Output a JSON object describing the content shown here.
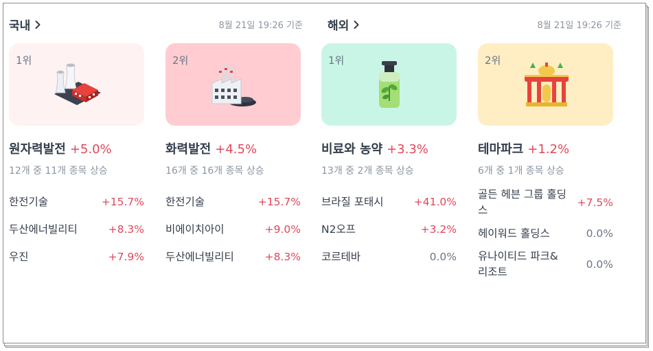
{
  "domestic": {
    "title": "국내",
    "timestamp": "8월 21일 19:26 기준",
    "cards": [
      {
        "rank": "1위",
        "icon": "nuclear-plant-icon",
        "bg": "#fff2f3",
        "name": "원자력발전",
        "change": "+5.0%",
        "summary": "12개 중 11개 종목 상승",
        "stocks": [
          {
            "name": "한전기술",
            "change": "+15.7%"
          },
          {
            "name": "두산에너빌리티",
            "change": "+8.3%"
          },
          {
            "name": "우진",
            "change": "+7.9%"
          }
        ]
      },
      {
        "rank": "2위",
        "icon": "thermal-plant-icon",
        "bg": "#ffccd1",
        "name": "화력발전",
        "change": "+4.5%",
        "summary": "16개 중 16개 종목 상승",
        "stocks": [
          {
            "name": "한전기술",
            "change": "+15.7%"
          },
          {
            "name": "비에이치아이",
            "change": "+9.0%"
          },
          {
            "name": "두산에너빌리티",
            "change": "+8.3%"
          }
        ]
      }
    ]
  },
  "overseas": {
    "title": "해외",
    "timestamp": "8월 21일 19:26 기준",
    "cards": [
      {
        "rank": "1위",
        "icon": "fertilizer-bottle-icon",
        "bg": "#c9f5e7",
        "name": "비료와 농약",
        "change": "+3.3%",
        "summary": "13개 중 2개 종목 상승",
        "stocks": [
          {
            "name": "브라질 포태시",
            "change": "+41.0%"
          },
          {
            "name": "N2오프",
            "change": "+3.2%"
          },
          {
            "name": "코르테바",
            "change": "0.0%"
          }
        ]
      },
      {
        "rank": "2위",
        "icon": "theme-park-icon",
        "bg": "#ffeec4",
        "name": "테마파크",
        "change": "+1.2%",
        "summary": "6개 중 1개 종목 상승",
        "stocks": [
          {
            "name": "골든 헤븐 그룹 홀딩스",
            "change": "+7.5%"
          },
          {
            "name": "헤이워드 홀딩스",
            "change": "0.0%"
          },
          {
            "name": "유나이티드 파크&리조트",
            "change": "0.0%"
          }
        ]
      }
    ]
  },
  "colors": {
    "up": "#e0475a",
    "flat": "#6b7684"
  }
}
